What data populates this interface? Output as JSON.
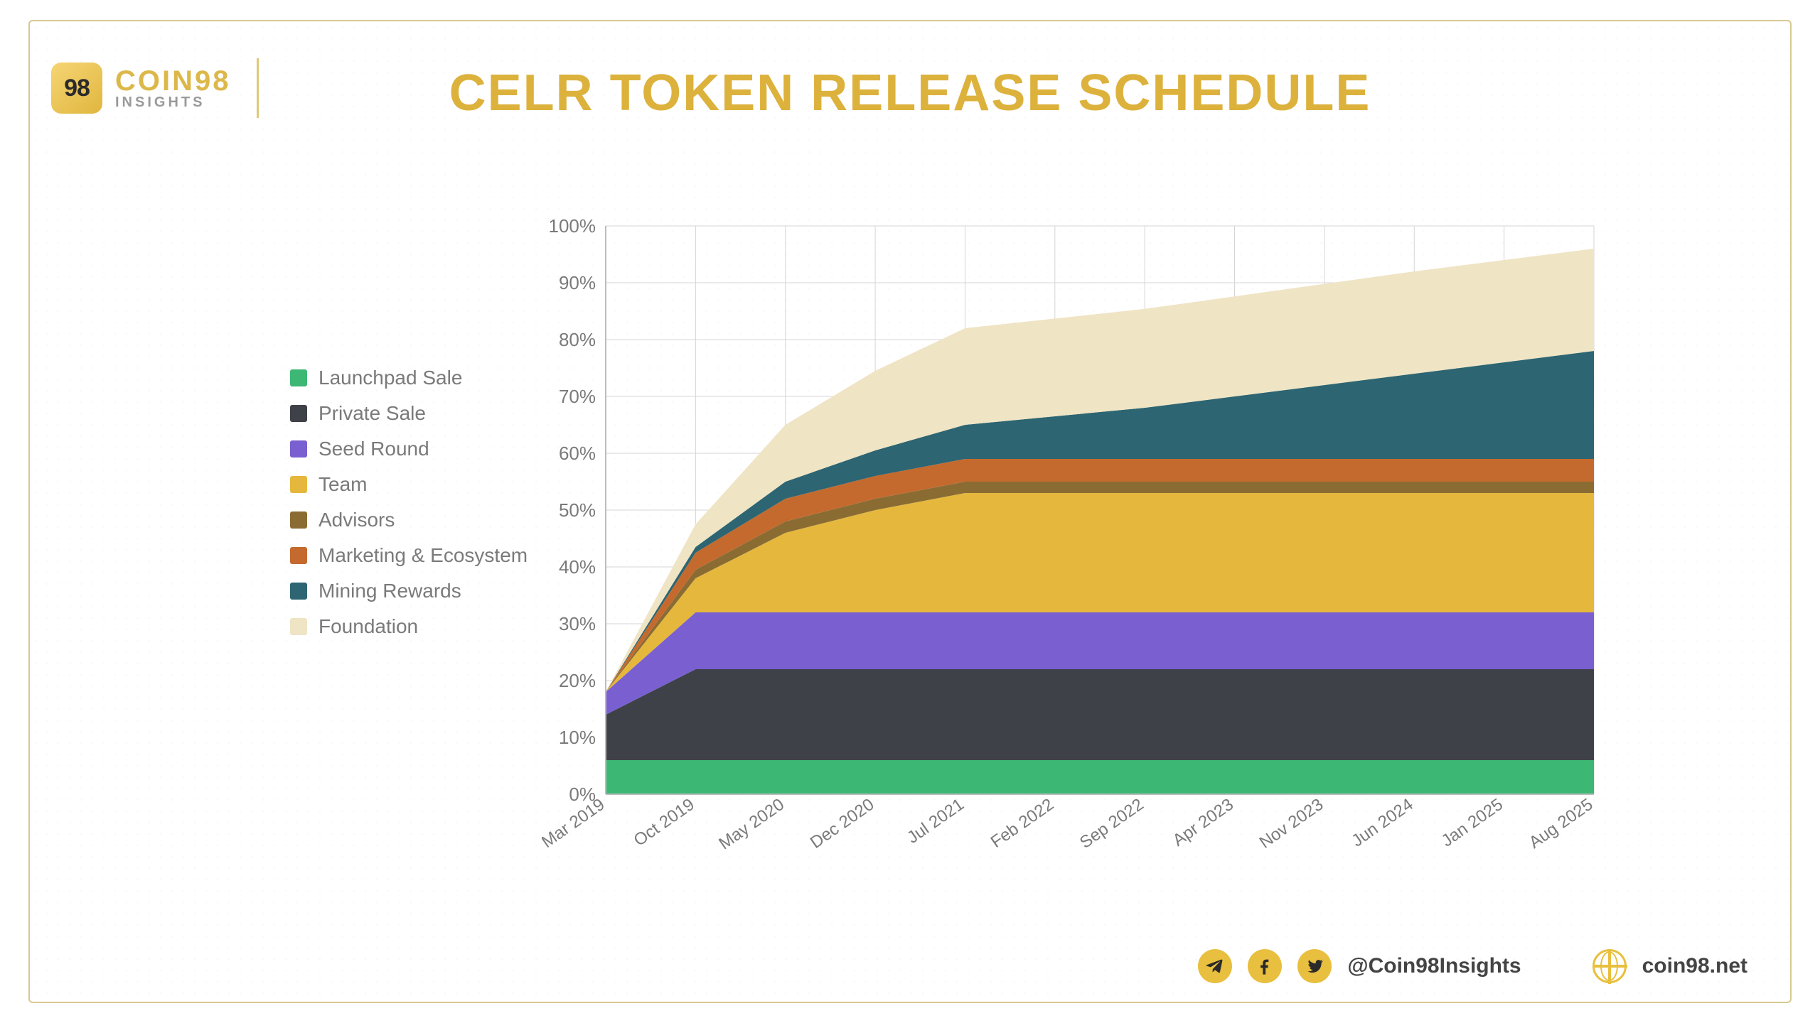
{
  "brand": {
    "badge": "98",
    "line1": "COIN98",
    "line2": "INSIGHTS"
  },
  "title": "CELR TOKEN RELEASE SCHEDULE",
  "legend": [
    {
      "label": "Launchpad Sale",
      "color": "#3cb774"
    },
    {
      "label": "Private Sale",
      "color": "#3e4148"
    },
    {
      "label": "Seed Round",
      "color": "#7a5fd1"
    },
    {
      "label": "Team",
      "color": "#e5b83d"
    },
    {
      "label": "Advisors",
      "color": "#8a6c33"
    },
    {
      "label": "Marketing & Ecosystem",
      "color": "#c46a2e"
    },
    {
      "label": "Mining Rewards",
      "color": "#2d6572"
    },
    {
      "label": "Foundation",
      "color": "#efe4c4"
    }
  ],
  "chart": {
    "type": "area-stacked",
    "background_color": "#ffffff",
    "grid_color": "#d5d5d5",
    "axis_color": "#bdbdbd",
    "label_color": "#7a7a7a",
    "label_fontsize": 26,
    "ylim": [
      0,
      100
    ],
    "ytick_step": 10,
    "ytick_suffix": "%",
    "x_labels": [
      "Mar 2019",
      "Oct 2019",
      "May 2020",
      "Dec 2020",
      "Jul 2021",
      "Feb 2022",
      "Sep 2022",
      "Apr 2023",
      "Nov 2023",
      "Jun 2024",
      "Jan 2025",
      "Aug 2025"
    ],
    "series": [
      {
        "name": "Launchpad Sale",
        "color": "#3cb774",
        "values": [
          6,
          6,
          6,
          6,
          6,
          6,
          6,
          6,
          6,
          6,
          6,
          6
        ]
      },
      {
        "name": "Private Sale",
        "color": "#3e4148",
        "values": [
          8,
          16,
          16,
          16,
          16,
          16,
          16,
          16,
          16,
          16,
          16,
          16
        ]
      },
      {
        "name": "Seed Round",
        "color": "#7a5fd1",
        "values": [
          4,
          10,
          10,
          10,
          10,
          10,
          10,
          10,
          10,
          10,
          10,
          10
        ]
      },
      {
        "name": "Team",
        "color": "#e5b83d",
        "values": [
          0,
          6,
          14,
          18,
          21,
          21,
          21,
          21,
          21,
          21,
          21,
          21
        ]
      },
      {
        "name": "Advisors",
        "color": "#8a6c33",
        "values": [
          0,
          1.5,
          2,
          2,
          2,
          2,
          2,
          2,
          2,
          2,
          2,
          2
        ]
      },
      {
        "name": "Marketing & Ecosystem",
        "color": "#c46a2e",
        "values": [
          0,
          3,
          4,
          4,
          4,
          4,
          4,
          4,
          4,
          4,
          4,
          4
        ]
      },
      {
        "name": "Mining Rewards",
        "color": "#2d6572",
        "values": [
          0,
          1,
          3,
          4.5,
          6,
          7.5,
          9,
          11,
          13,
          15,
          17,
          19
        ]
      },
      {
        "name": "Foundation",
        "color": "#efe4c4",
        "values": [
          0,
          4,
          10,
          14,
          17,
          17.2,
          17.4,
          17.6,
          17.8,
          18,
          18,
          18
        ]
      }
    ]
  },
  "footer": {
    "handle": "@Coin98Insights",
    "site": "coin98.net"
  }
}
